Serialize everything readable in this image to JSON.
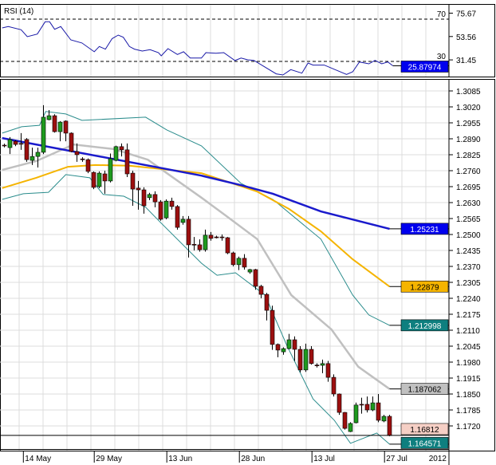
{
  "chart_data": {
    "type": "candlestick",
    "title": "",
    "rsi_panel": {
      "label": "RSI (14)",
      "levels": [
        {
          "value": 70,
          "label": "70"
        },
        {
          "value": 30,
          "label": "30"
        }
      ],
      "axis_ticks": [
        "75.67",
        "53.56",
        "31.45"
      ],
      "axis_tick_values": [
        75.67,
        53.56,
        31.45
      ],
      "current_value": "25.87974",
      "current_color": "#0000ee",
      "line_color": "#1a1aa8",
      "points": [
        [
          -0.4,
          61.7
        ],
        [
          0.7,
          63.0
        ],
        [
          3,
          60.0
        ],
        [
          4.1,
          53.4
        ],
        [
          5.9,
          55.9
        ],
        [
          7.3,
          67.5
        ],
        [
          8.1,
          67.5
        ],
        [
          9,
          60.4
        ],
        [
          10.1,
          63.0
        ],
        [
          11.9,
          50.4
        ],
        [
          13.9,
          47.4
        ],
        [
          16.1,
          39.1
        ],
        [
          17,
          44.1
        ],
        [
          18.1,
          41.6
        ],
        [
          19.3,
          51.6
        ],
        [
          20.4,
          54.9
        ],
        [
          21.3,
          52.9
        ],
        [
          22.4,
          44.1
        ],
        [
          23.3,
          41.6
        ],
        [
          24.7,
          39.8
        ],
        [
          26.1,
          41.1
        ],
        [
          27.6,
          38.3
        ],
        [
          28.1,
          35.3
        ],
        [
          29.3,
          42.1
        ],
        [
          31,
          36.6
        ],
        [
          32.1,
          39.1
        ],
        [
          33.3,
          33.2
        ],
        [
          35.3,
          33.2
        ],
        [
          36.1,
          38.3
        ],
        [
          37.9,
          37.8
        ],
        [
          39.3,
          38.3
        ],
        [
          41.3,
          30.8
        ],
        [
          42.4,
          33.2
        ],
        [
          43.6,
          31.5
        ],
        [
          44.7,
          31.0
        ],
        [
          48.7,
          18.2
        ],
        [
          49.9,
          17.2
        ],
        [
          51.3,
          22.2
        ],
        [
          53.3,
          18.9
        ],
        [
          54.4,
          28.5
        ],
        [
          55.3,
          26.5
        ],
        [
          57.3,
          26.5
        ],
        [
          61.3,
          17.7
        ],
        [
          62.4,
          20.2
        ],
        [
          63.6,
          29.5
        ],
        [
          65.3,
          27.7
        ],
        [
          66.4,
          31.0
        ],
        [
          67.6,
          27.7
        ],
        [
          68.7,
          29.5
        ],
        [
          69.6,
          25.88
        ]
      ]
    },
    "price_axis": {
      "ticks": [
        "1.3085",
        "1.3020",
        "1.2955",
        "1.2890",
        "1.2825",
        "1.2760",
        "1.2695",
        "1.2630",
        "1.2565",
        "1.2500",
        "1.2435",
        "1.2370",
        "1.2305",
        "1.2240",
        "1.2175",
        "1.2110",
        "1.2045",
        "1.1980",
        "1.1915",
        "1.1850",
        "1.1785",
        "1.1720"
      ],
      "range": [
        1.1625,
        1.313
      ]
    },
    "x_axis": {
      "labels": [
        {
          "label": "14 May",
          "index": 3.4
        },
        {
          "label": "29 May",
          "index": 16.1
        },
        {
          "label": "13 Jun",
          "index": 29.1
        },
        {
          "label": "28 Jun",
          "index": 42.1
        },
        {
          "label": "13 Jul",
          "index": 55.1
        },
        {
          "label": "27 Jul",
          "index": 68.1
        }
      ],
      "year_label": "2012"
    },
    "candles_ohlc": [
      [
        1.2864,
        1.2862,
        1.287,
        1.2855
      ],
      [
        1.2854,
        1.2887,
        1.2897,
        1.2828
      ],
      [
        1.288,
        1.2867,
        1.2884,
        1.286
      ],
      [
        1.2871,
        1.2869,
        1.2913,
        1.2845
      ],
      [
        1.2887,
        1.2805,
        1.2893,
        1.2796
      ],
      [
        1.2802,
        1.2818,
        1.2854,
        1.2783
      ],
      [
        1.2818,
        1.2835,
        1.2854,
        1.2773
      ],
      [
        1.2835,
        1.2978,
        1.3027,
        1.2828
      ],
      [
        1.2968,
        1.2984,
        1.3007,
        1.2965
      ],
      [
        1.2984,
        1.2919,
        1.299,
        1.2915
      ],
      [
        1.2919,
        1.2958,
        1.2962,
        1.288
      ],
      [
        1.2962,
        1.2913,
        1.2965,
        1.288
      ],
      [
        1.2913,
        1.2838,
        1.2916,
        1.2835
      ],
      [
        1.2838,
        1.2825,
        1.2871,
        1.2796
      ],
      [
        1.2808,
        1.2805,
        1.2815,
        1.2796
      ],
      [
        1.2805,
        1.2757,
        1.281,
        1.275
      ],
      [
        1.2753,
        1.2692,
        1.2757,
        1.2685
      ],
      [
        1.2695,
        1.275,
        1.2757,
        1.2689
      ],
      [
        1.2747,
        1.2718,
        1.276,
        1.2666
      ],
      [
        1.2718,
        1.2809,
        1.283,
        1.2712
      ],
      [
        1.2802,
        1.2858,
        1.2862,
        1.2798
      ],
      [
        1.2858,
        1.2845,
        1.2871,
        1.2818
      ],
      [
        1.2845,
        1.2747,
        1.2871,
        1.2734
      ],
      [
        1.275,
        1.2685,
        1.276,
        1.2617
      ],
      [
        1.2689,
        1.2682,
        1.2718,
        1.2601
      ],
      [
        1.2682,
        1.2617,
        1.2692,
        1.2585
      ],
      [
        1.265,
        1.2663,
        1.267,
        1.264
      ],
      [
        1.2663,
        1.2633,
        1.2676,
        1.2611
      ],
      [
        1.2633,
        1.2562,
        1.264,
        1.2556
      ],
      [
        1.2568,
        1.2636,
        1.2643,
        1.2562
      ],
      [
        1.2636,
        1.2614,
        1.265,
        1.2601
      ],
      [
        1.2614,
        1.2529,
        1.262,
        1.252
      ],
      [
        1.2549,
        1.2562,
        1.2575,
        1.254
      ],
      [
        1.2562,
        1.2458,
        1.2575,
        1.2406
      ],
      [
        1.246,
        1.2458,
        1.249,
        1.2435
      ],
      [
        1.2458,
        1.2438,
        1.248,
        1.243
      ],
      [
        1.2438,
        1.2497,
        1.252,
        1.243
      ],
      [
        1.2497,
        1.2484,
        1.251,
        1.2475
      ],
      [
        1.249,
        1.2489,
        1.2495,
        1.2484
      ],
      [
        1.249,
        1.2489,
        1.25,
        1.2475
      ],
      [
        1.2487,
        1.2425,
        1.249,
        1.242
      ],
      [
        1.2425,
        1.2377,
        1.243,
        1.237
      ],
      [
        1.2377,
        1.2403,
        1.241,
        1.2355
      ],
      [
        1.2403,
        1.2367,
        1.242,
        1.2357
      ],
      [
        1.2347,
        1.2357,
        1.236,
        1.234
      ],
      [
        1.2357,
        1.2289,
        1.236,
        1.2275
      ],
      [
        1.2289,
        1.2256,
        1.2295,
        1.224
      ],
      [
        1.2256,
        1.2191,
        1.2262,
        1.215
      ],
      [
        1.2191,
        1.2052,
        1.221,
        1.203
      ],
      [
        1.2052,
        1.2029,
        1.2056,
        1.2
      ],
      [
        1.2022,
        1.2035,
        1.204,
        1.201
      ],
      [
        1.2035,
        1.2071,
        1.2095,
        1.2032
      ],
      [
        1.2071,
        1.2032,
        1.2085,
        1.1985
      ],
      [
        1.2032,
        1.1948,
        1.2045,
        1.1938
      ],
      [
        1.1948,
        1.2032,
        1.2055,
        1.194
      ],
      [
        1.2032,
        1.1974,
        1.2045,
        1.197
      ],
      [
        1.1968,
        1.1967,
        1.1975,
        1.1958
      ],
      [
        1.1967,
        1.1974,
        1.199,
        1.1935
      ],
      [
        1.1974,
        1.1918,
        1.1985,
        1.19
      ],
      [
        1.1918,
        1.185,
        1.193,
        1.184
      ],
      [
        1.185,
        1.1775,
        1.1852,
        1.1765
      ],
      [
        1.1775,
        1.171,
        1.1777,
        1.1705
      ],
      [
        1.1697,
        1.173,
        1.1735,
        1.1695
      ],
      [
        1.1733,
        1.1805,
        1.1815,
        1.173
      ],
      [
        1.1808,
        1.1807,
        1.1835,
        1.177
      ],
      [
        1.1808,
        1.1785,
        1.184,
        1.1775
      ],
      [
        1.1785,
        1.1814,
        1.184,
        1.178
      ],
      [
        1.1814,
        1.1743,
        1.185,
        1.1735
      ],
      [
        1.174,
        1.1759,
        1.1765,
        1.1735
      ],
      [
        1.1759,
        1.16812,
        1.1765,
        1.1678
      ]
    ],
    "series": [
      {
        "name": "bollinger-upper",
        "color": "#2a8c8c",
        "label": "1.212998",
        "label_bg": "#0e7f7f",
        "label_fg": "#ffffff",
        "points": [
          [
            -0.4,
            1.2913
          ],
          [
            3.1,
            1.2939
          ],
          [
            6.3,
            1.2945
          ],
          [
            7.4,
            1.3001
          ],
          [
            11,
            1.2991
          ],
          [
            13.9,
            1.2965
          ],
          [
            25.3,
            1.2978
          ],
          [
            29.1,
            1.2926
          ],
          [
            35.3,
            1.2861
          ],
          [
            42.4,
            1.2708
          ],
          [
            48.1,
            1.2643
          ],
          [
            56.7,
            1.2481
          ],
          [
            62.4,
            1.2253
          ],
          [
            65.3,
            1.2172
          ],
          [
            69,
            1.212998
          ]
        ]
      },
      {
        "name": "bollinger-lower",
        "color": "#2a8c8c",
        "label": "1.164571",
        "label_bg": "#0e7f7f",
        "label_fg": "#ffffff",
        "points": [
          [
            -0.4,
            1.2643
          ],
          [
            3.4,
            1.2666
          ],
          [
            7.9,
            1.2672
          ],
          [
            11,
            1.2744
          ],
          [
            15.3,
            1.2731
          ],
          [
            17.7,
            1.2663
          ],
          [
            21.4,
            1.2656
          ],
          [
            25.3,
            1.2611
          ],
          [
            28.1,
            1.2546
          ],
          [
            35.3,
            1.2383
          ],
          [
            38.1,
            1.2334
          ],
          [
            41.4,
            1.2344
          ],
          [
            46.7,
            1.2253
          ],
          [
            50.6,
            1.2048
          ],
          [
            55.3,
            1.183
          ],
          [
            59.1,
            1.1743
          ],
          [
            62,
            1.1649
          ],
          [
            66.7,
            1.1691
          ],
          [
            69,
            1.164571
          ]
        ]
      },
      {
        "name": "moving-average-middle",
        "color": "#c0c0c0",
        "label": "1.187062",
        "label_bg": "#c0c0c0",
        "label_fg": "#000000",
        "points": [
          [
            -0.4,
            1.2763
          ],
          [
            5.7,
            1.2799
          ],
          [
            12.4,
            1.2867
          ],
          [
            19.6,
            1.2848
          ],
          [
            25.7,
            1.2805
          ],
          [
            35.3,
            1.265
          ],
          [
            39.6,
            1.2578
          ],
          [
            45.3,
            1.2481
          ],
          [
            51.4,
            1.2253
          ],
          [
            58.6,
            1.2113
          ],
          [
            63.4,
            1.1961
          ],
          [
            69,
            1.187062
          ]
        ]
      },
      {
        "name": "moving-average-orange",
        "color": "#f5b400",
        "label": "1.22879",
        "label_bg": "#f5b400",
        "label_fg": "#000000",
        "points": [
          [
            -0.4,
            1.2689
          ],
          [
            5.7,
            1.2731
          ],
          [
            11.4,
            1.2776
          ],
          [
            16.3,
            1.2783
          ],
          [
            22.4,
            1.278
          ],
          [
            35.3,
            1.275
          ],
          [
            45.3,
            1.2675
          ],
          [
            51,
            1.2604
          ],
          [
            56.7,
            1.2513
          ],
          [
            62.4,
            1.2399
          ],
          [
            69,
            1.22879
          ]
        ]
      },
      {
        "name": "moving-average-blue",
        "color": "#1a1acc",
        "label": "1.25231",
        "label_bg": "#0000ee",
        "label_fg": "#ffffff",
        "points": [
          [
            -0.4,
            1.2893
          ],
          [
            35.3,
            1.274
          ],
          [
            42.4,
            1.2701
          ],
          [
            48.1,
            1.2666
          ],
          [
            56.7,
            1.2594
          ],
          [
            69,
            1.25231
          ]
        ]
      }
    ],
    "last_price": {
      "label": "1.16812",
      "value": 1.16812,
      "label_bg": "#f5cfc5",
      "label_fg": "#000000"
    },
    "colors": {
      "up": "#1e9a1e",
      "down": "#9c0f0f"
    }
  }
}
